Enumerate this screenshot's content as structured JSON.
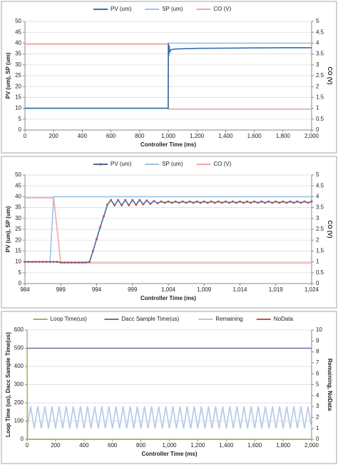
{
  "chart_data": [
    {
      "type": "line",
      "x_label": "Controller Time (ms)",
      "y_label": "PV (um),  SP (um)",
      "y2_label": "CO (V)",
      "xlim": [
        0,
        2000
      ],
      "xticks": [
        0,
        200,
        400,
        600,
        800,
        {
          "value": 1000,
          "label": "1,000"
        },
        {
          "value": 1200,
          "label": "1,200"
        },
        {
          "value": 1400,
          "label": "1,400"
        },
        {
          "value": 1600,
          "label": "1,600"
        },
        {
          "value": 1800,
          "label": "1,800"
        },
        {
          "value": 2000,
          "label": "2,000"
        }
      ],
      "ylim": [
        0,
        50
      ],
      "yticks": [
        0,
        5,
        10,
        15,
        20,
        25,
        30,
        35,
        40,
        45,
        50
      ],
      "y2lim": [
        0,
        5
      ],
      "y2ticks": [
        0,
        0.5,
        1,
        1.5,
        2,
        2.5,
        3,
        3.5,
        4,
        4.5,
        5
      ],
      "grid": true,
      "series": [
        {
          "name": "PV (um)",
          "color": "#3c6ea6",
          "x": [
            0,
            500,
            990,
            999,
            1000,
            1001,
            1003,
            1006,
            1010,
            1020,
            1050,
            1100,
            1200,
            1400,
            1600,
            1800,
            2000
          ],
          "values": [
            10,
            10,
            10,
            10,
            25,
            40,
            34,
            39,
            36,
            37,
            37.3,
            37.4,
            37.6,
            37.7,
            37.8,
            37.9,
            37.9
          ]
        },
        {
          "name": "SP (um)",
          "color": "#9dc3e6",
          "x": [
            0,
            1000,
            1000,
            2000
          ],
          "values": [
            10,
            10,
            40,
            40
          ]
        },
        {
          "name": "CO (V)",
          "color": "#f4a6a6",
          "axis": "y2",
          "x": [
            0,
            1000,
            1000,
            2000
          ],
          "values": [
            3.95,
            3.95,
            0.95,
            0.95
          ]
        }
      ]
    },
    {
      "type": "line",
      "x_label": "Controller Time (ms)",
      "y_label": "PV (um),  SP (um)",
      "y2_label": "CO (V)",
      "xlim": [
        984,
        1024
      ],
      "xticks": [
        984,
        989,
        994,
        999,
        {
          "value": 1004,
          "label": "1,004"
        },
        {
          "value": 1009,
          "label": "1,009"
        },
        {
          "value": 1014,
          "label": "1,014"
        },
        {
          "value": 1019,
          "label": "1,019"
        },
        {
          "value": 1024,
          "label": "1,024"
        }
      ],
      "ylim": [
        0,
        50
      ],
      "yticks": [
        0,
        5,
        10,
        15,
        20,
        25,
        30,
        35,
        40,
        45,
        50
      ],
      "y2lim": [
        0,
        5
      ],
      "y2ticks": [
        0,
        0.5,
        1,
        1.5,
        2,
        2.5,
        3,
        3.5,
        4,
        4.5,
        5
      ],
      "grid": true,
      "series": [
        {
          "name": "PV (um)",
          "color": "#3c6ea6",
          "marker": true,
          "marker_color": "#c0504d",
          "x": [
            984,
            984.5,
            985,
            985.5,
            986,
            986.5,
            987,
            987.5,
            988,
            988.5,
            989,
            989.5,
            990,
            990.5,
            991,
            991.5,
            992,
            992.5,
            993,
            993.5,
            994,
            994.5,
            995,
            995.5,
            996,
            996.5,
            997,
            997.5,
            998,
            998.5,
            999,
            999.5,
            1000,
            1000.5,
            1001,
            1001.5,
            1002,
            1002.5,
            1003,
            1003.5,
            1004,
            1004.5,
            1005,
            1005.5,
            1006,
            1006.5,
            1007,
            1007.5,
            1008,
            1008.5,
            1009,
            1009.5,
            1010,
            1010.5,
            1011,
            1011.5,
            1012,
            1012.5,
            1013,
            1013.5,
            1014,
            1014.5,
            1015,
            1015.5,
            1016,
            1016.5,
            1017,
            1017.5,
            1018,
            1018.5,
            1019,
            1019.5,
            1020,
            1020.5,
            1021,
            1021.5,
            1022,
            1022.5,
            1023,
            1023.5,
            1024
          ],
          "values": [
            10,
            10,
            10,
            10,
            10,
            10,
            10,
            10,
            10,
            10,
            9.7,
            9.7,
            9.7,
            9.7,
            9.7,
            9.7,
            9.7,
            9.7,
            10,
            15,
            20.5,
            26,
            31,
            36.3,
            38.5,
            36,
            38.5,
            36,
            38.5,
            36,
            38.5,
            36.3,
            38.5,
            36.5,
            38.3,
            36.7,
            38,
            37,
            37.8,
            37.2,
            37.8,
            37.2,
            37.8,
            37.2,
            37.8,
            37.2,
            37.8,
            37.2,
            37.8,
            37.2,
            37.8,
            37.2,
            37.8,
            37.2,
            37.8,
            37.2,
            37.8,
            37.2,
            37.8,
            37.2,
            37.8,
            37.2,
            37.8,
            37.2,
            37.8,
            37.2,
            37.8,
            37.2,
            37.8,
            37.2,
            37.8,
            37.2,
            37.8,
            37.2,
            37.8,
            37.2,
            37.8,
            37.2,
            37.8,
            37.2,
            37.8
          ]
        },
        {
          "name": "SP (um)",
          "color": "#9dc3e6",
          "x": [
            984,
            987.5,
            988,
            1024
          ],
          "values": [
            10,
            10,
            40,
            40
          ]
        },
        {
          "name": "CO (V)",
          "color": "#f4a6a6",
          "axis": "y2",
          "x": [
            984,
            988,
            989,
            1024
          ],
          "values": [
            3.95,
            3.95,
            0.95,
            0.95
          ]
        }
      ]
    },
    {
      "type": "line",
      "x_label": "Controller Time (ms)",
      "y_label": "Loop Time (us),  Dacc Sample Time(us)",
      "y2_label": "Remaining, NoData",
      "xlim": [
        0,
        2000
      ],
      "xticks": [
        0,
        200,
        400,
        600,
        800,
        {
          "value": 1000,
          "label": "1,000"
        },
        {
          "value": 1200,
          "label": "1,200"
        },
        {
          "value": 1400,
          "label": "1,400"
        },
        {
          "value": 1600,
          "label": "1,600"
        },
        {
          "value": 1800,
          "label": "1,800"
        },
        {
          "value": 2000,
          "label": "2,000"
        }
      ],
      "ylim": [
        0,
        600
      ],
      "yticks": [
        0,
        100,
        200,
        300,
        400,
        500,
        600
      ],
      "y2lim": [
        0,
        10
      ],
      "y2ticks": [
        0,
        1,
        2,
        3,
        4,
        5,
        6,
        7,
        8,
        9,
        10
      ],
      "grid": true,
      "series": [
        {
          "name": "Loop Time(us)",
          "color": "#9bbb59",
          "x": [
            0,
            3,
            2000
          ],
          "values": [
            500,
            0,
            0
          ]
        },
        {
          "name": "Dacc Sample Time(us)",
          "color": "#8064a2",
          "x": [
            0,
            2000
          ],
          "values": [
            500,
            500
          ]
        },
        {
          "name": "Remaining",
          "color": "#b4c7e7",
          "axis": "y2",
          "x": [
            0,
            25,
            50,
            75,
            100,
            125,
            150,
            175,
            200,
            225,
            250,
            275,
            300,
            325,
            350,
            375,
            400,
            425,
            450,
            475,
            500,
            525,
            550,
            575,
            600,
            625,
            650,
            675,
            700,
            725,
            750,
            775,
            800,
            825,
            850,
            875,
            900,
            925,
            950,
            975,
            1000,
            1025,
            1050,
            1075,
            1100,
            1125,
            1150,
            1175,
            1200,
            1225,
            1250,
            1275,
            1300,
            1325,
            1350,
            1375,
            1400,
            1425,
            1450,
            1475,
            1500,
            1525,
            1550,
            1575,
            1600,
            1625,
            1650,
            1675,
            1700,
            1725,
            1750,
            1775,
            1800,
            1825,
            1850,
            1875,
            1900,
            1925,
            1950,
            1975,
            2000
          ],
          "values": [
            1,
            3,
            1,
            3,
            1,
            3,
            1,
            3,
            1,
            3,
            1,
            3,
            1,
            3,
            1,
            3,
            1,
            3,
            1,
            3,
            1,
            3,
            1,
            3,
            1,
            3,
            1,
            3,
            1,
            3,
            1,
            3,
            1,
            3,
            1,
            3,
            1,
            3,
            1,
            3,
            1,
            3,
            1,
            3,
            1,
            3,
            1,
            3,
            1,
            3,
            1,
            3,
            1,
            3,
            1,
            3,
            1,
            3,
            1,
            3,
            1,
            3,
            1,
            3,
            1,
            3,
            1,
            3,
            1,
            3,
            1,
            3,
            1,
            3,
            1,
            3,
            1,
            3,
            1,
            3,
            1
          ]
        },
        {
          "name": "NoData",
          "color": "#c0504d",
          "axis": "y2",
          "x": [
            0,
            2000
          ],
          "values": [
            0,
            0
          ]
        }
      ]
    }
  ]
}
